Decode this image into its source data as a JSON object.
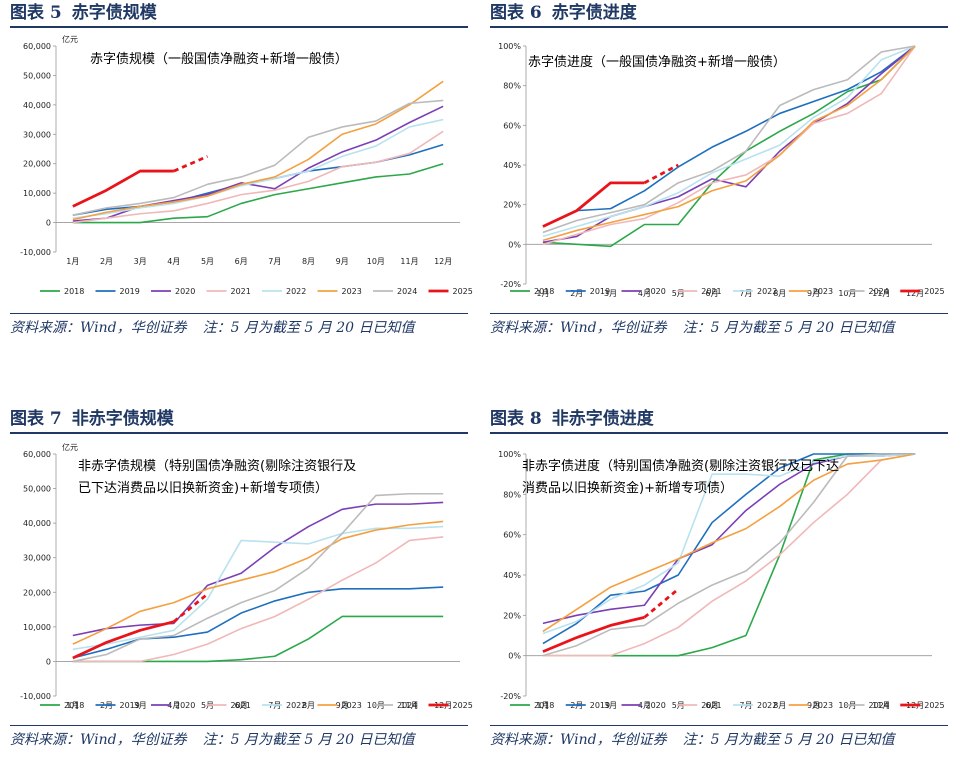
{
  "months": [
    "1月",
    "2月",
    "3月",
    "4月",
    "5月",
    "6月",
    "7月",
    "8月",
    "9月",
    "10月",
    "11月",
    "12月"
  ],
  "footnote": {
    "source": "资料来源：Wind，华创证券",
    "note": "注：5 月为截至 5 月 20 日已知值"
  },
  "colors": {
    "2018": "#2ba84a",
    "2019": "#1f6fbf",
    "2020": "#7b3fb5",
    "2021": "#f0b8b8",
    "2022": "#b8e2ef",
    "2023": "#f4a040",
    "2024": "#bbbbbb",
    "2025": "#e8141a"
  },
  "chart_data": [
    {
      "type": "line",
      "fig_label": "图表 5",
      "fig_title": "赤字债规模",
      "subtitle": [
        "赤字债规模（一般国债净融资+新增一般债）"
      ],
      "unit": "亿元",
      "ylim": [
        -10000,
        60000
      ],
      "yticks": [
        -10000,
        0,
        10000,
        20000,
        30000,
        40000,
        50000,
        60000
      ],
      "ytick_labels": [
        "-10,000",
        "0",
        "10,000",
        "20,000",
        "30,000",
        "40,000",
        "50,000",
        "60,000"
      ],
      "series": [
        {
          "name": "2018",
          "values": [
            0,
            0,
            0,
            1500,
            2000,
            6500,
            9500,
            11500,
            13500,
            15500,
            16500,
            20000
          ]
        },
        {
          "name": "2019",
          "values": [
            2500,
            4500,
            5500,
            7000,
            10000,
            13000,
            15000,
            17500,
            19000,
            20500,
            23000,
            26500
          ]
        },
        {
          "name": "2020",
          "values": [
            500,
            1500,
            5500,
            7500,
            9500,
            13500,
            11500,
            18500,
            24000,
            28000,
            34000,
            39500
          ]
        },
        {
          "name": "2021",
          "values": [
            0,
            1500,
            3000,
            4000,
            6500,
            9500,
            11000,
            14000,
            19000,
            20500,
            23500,
            31000
          ]
        },
        {
          "name": "2022",
          "values": [
            1500,
            3000,
            5000,
            6500,
            9000,
            12500,
            15000,
            17500,
            22500,
            26000,
            32500,
            35000
          ]
        },
        {
          "name": "2023",
          "values": [
            1000,
            3500,
            5500,
            7000,
            9000,
            13000,
            15500,
            21500,
            30000,
            33500,
            40000,
            48000
          ]
        },
        {
          "name": "2024",
          "values": [
            2500,
            5000,
            6500,
            8500,
            13000,
            15500,
            19500,
            29000,
            32500,
            34500,
            40500,
            41500
          ]
        },
        {
          "name": "2025",
          "values": [
            5500,
            11000,
            17500,
            17500,
            22500
          ],
          "dashed_from": 3
        }
      ]
    },
    {
      "type": "line",
      "fig_label": "图表 6",
      "fig_title": "赤字债进度",
      "subtitle": [
        "赤字债进度（一般国债净融资+新增一般债）"
      ],
      "unit": "",
      "ylim": [
        -20,
        100
      ],
      "yticks": [
        -20,
        0,
        20,
        40,
        60,
        80,
        100
      ],
      "ytick_labels": [
        "-20%",
        "0%",
        "20%",
        "40%",
        "60%",
        "80%",
        "100%"
      ],
      "series": [
        {
          "name": "2018",
          "values": [
            1,
            0,
            -1,
            10,
            10,
            31,
            47,
            57,
            66,
            77,
            83,
            100
          ]
        },
        {
          "name": "2019",
          "values": [
            9,
            17,
            18,
            27,
            39,
            49,
            57,
            66,
            72,
            78,
            87,
            100
          ]
        },
        {
          "name": "2020",
          "values": [
            1,
            4,
            14,
            19,
            24,
            33,
            29,
            47,
            61,
            71,
            86,
            100
          ]
        },
        {
          "name": "2021",
          "values": [
            0,
            5,
            10,
            13,
            21,
            31,
            35,
            45,
            61,
            66,
            76,
            100
          ]
        },
        {
          "name": "2022",
          "values": [
            4,
            9,
            14,
            19,
            26,
            36,
            43,
            50,
            64,
            74,
            93,
            100
          ]
        },
        {
          "name": "2023",
          "values": [
            2,
            7,
            11,
            15,
            19,
            27,
            32,
            45,
            62,
            70,
            83,
            100
          ]
        },
        {
          "name": "2024",
          "values": [
            6,
            12,
            16,
            20,
            31,
            37,
            47,
            70,
            78,
            83,
            97,
            100
          ]
        },
        {
          "name": "2025",
          "values": [
            9,
            17,
            31,
            31,
            40
          ],
          "dashed_from": 3
        }
      ]
    },
    {
      "type": "line",
      "fig_label": "图表 7",
      "fig_title": "非赤字债规模",
      "subtitle": [
        "非赤字债规模（特别国债净融资(剔除注资银行及",
        "已下达消费品以旧换新资金)+新增专项债）"
      ],
      "unit": "亿元",
      "ylim": [
        -10000,
        60000
      ],
      "yticks": [
        -10000,
        0,
        10000,
        20000,
        30000,
        40000,
        50000,
        60000
      ],
      "ytick_labels": [
        "-10,000",
        "0",
        "10,000",
        "20,000",
        "30,000",
        "40,000",
        "50,000",
        "60,000"
      ],
      "series": [
        {
          "name": "2018",
          "values": [
            0,
            0,
            0,
            0,
            0,
            500,
            1500,
            6500,
            13000,
            13000,
            13000,
            13000
          ]
        },
        {
          "name": "2019",
          "values": [
            1000,
            3500,
            6500,
            7000,
            8500,
            14000,
            17500,
            20000,
            21000,
            21000,
            21000,
            21500
          ]
        },
        {
          "name": "2020",
          "values": [
            7500,
            9500,
            10500,
            11000,
            22000,
            25500,
            33000,
            39000,
            44000,
            45500,
            45500,
            46000
          ]
        },
        {
          "name": "2021",
          "values": [
            0,
            0,
            0,
            2000,
            5000,
            9500,
            13000,
            18000,
            23500,
            28500,
            35000,
            36000
          ]
        },
        {
          "name": "2022",
          "values": [
            3500,
            5000,
            7000,
            9000,
            18000,
            35000,
            34500,
            34000,
            37000,
            38500,
            38500,
            39000
          ]
        },
        {
          "name": "2023",
          "values": [
            5000,
            9500,
            14500,
            17000,
            21000,
            23500,
            26000,
            30000,
            35500,
            38000,
            39500,
            40500
          ]
        },
        {
          "name": "2024",
          "values": [
            0,
            2000,
            6500,
            7500,
            12500,
            17000,
            20500,
            27000,
            37000,
            48000,
            48500,
            48500
          ]
        },
        {
          "name": "2025",
          "values": [
            1000,
            5500,
            9000,
            11500,
            19500
          ],
          "dashed_from": 3
        }
      ]
    },
    {
      "type": "line",
      "fig_label": "图表 8",
      "fig_title": "非赤字债进度",
      "subtitle": [
        "非赤字债进度（特别国债净融资(剔除注资银行及已下达",
        "消费品以旧换新资金)+新增专项债）"
      ],
      "unit": "",
      "ylim": [
        -20,
        100
      ],
      "yticks": [
        -20,
        0,
        20,
        40,
        60,
        80,
        100
      ],
      "ytick_labels": [
        "-20%",
        "0%",
        "20%",
        "40%",
        "60%",
        "80%",
        "100%"
      ],
      "series": [
        {
          "name": "2018",
          "values": [
            0,
            0,
            0,
            0,
            0,
            4,
            10,
            50,
            97,
            100,
            100,
            100
          ]
        },
        {
          "name": "2019",
          "values": [
            6,
            16,
            30,
            32,
            40,
            66,
            80,
            93,
            100,
            100,
            100,
            100
          ]
        },
        {
          "name": "2020",
          "values": [
            16,
            20,
            23,
            25,
            48,
            55,
            72,
            85,
            95,
            99,
            99,
            100
          ]
        },
        {
          "name": "2021",
          "values": [
            0,
            0,
            0,
            6,
            14,
            27,
            37,
            50,
            66,
            80,
            97,
            100
          ]
        },
        {
          "name": "2022",
          "values": [
            11,
            17,
            28,
            35,
            46,
            90,
            90,
            89,
            96,
            99,
            99,
            100
          ]
        },
        {
          "name": "2023",
          "values": [
            12,
            23,
            34,
            41,
            48,
            56,
            63,
            74,
            87,
            95,
            97,
            100
          ]
        },
        {
          "name": "2024",
          "values": [
            0,
            5,
            13,
            15,
            26,
            35,
            42,
            56,
            76,
            99,
            100,
            100
          ]
        },
        {
          "name": "2025",
          "values": [
            2,
            9,
            15,
            19,
            33
          ],
          "dashed_from": 3
        }
      ]
    }
  ]
}
